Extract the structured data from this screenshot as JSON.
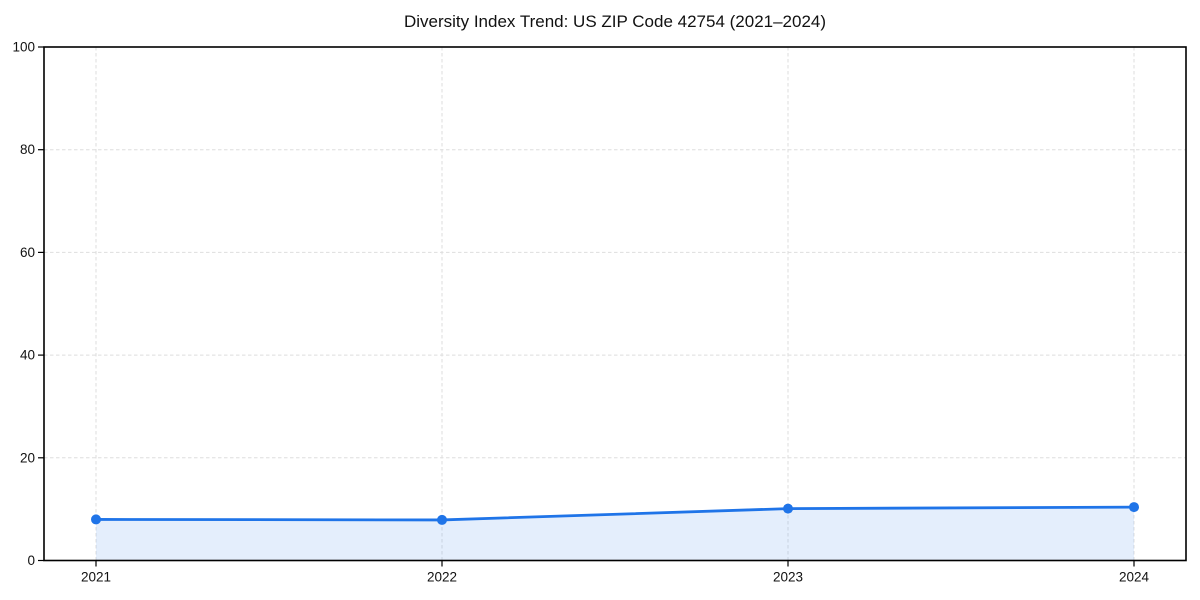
{
  "chart_data": {
    "type": "line",
    "title": "Diversity Index Trend: US ZIP Code 42754 (2021–2024)",
    "xlabel": "",
    "ylabel": "",
    "categories": [
      "2021",
      "2022",
      "2023",
      "2024"
    ],
    "series": [
      {
        "name": "Diversity Index",
        "values": [
          8.0,
          7.9,
          10.1,
          10.4
        ]
      }
    ],
    "ylim": [
      0,
      100
    ],
    "yticks": [
      0,
      20,
      40,
      60,
      80,
      100
    ],
    "grid": "dashed",
    "legend_position": "none",
    "marker": "circle",
    "area_fill": true,
    "colors": {
      "line": "#1f74e8",
      "marker": "#1f74e8",
      "area": "rgba(31,116,232,0.12)",
      "grid": "#dedede",
      "spine": "#000000",
      "tick_text": "#111111",
      "background": "#ffffff"
    }
  }
}
